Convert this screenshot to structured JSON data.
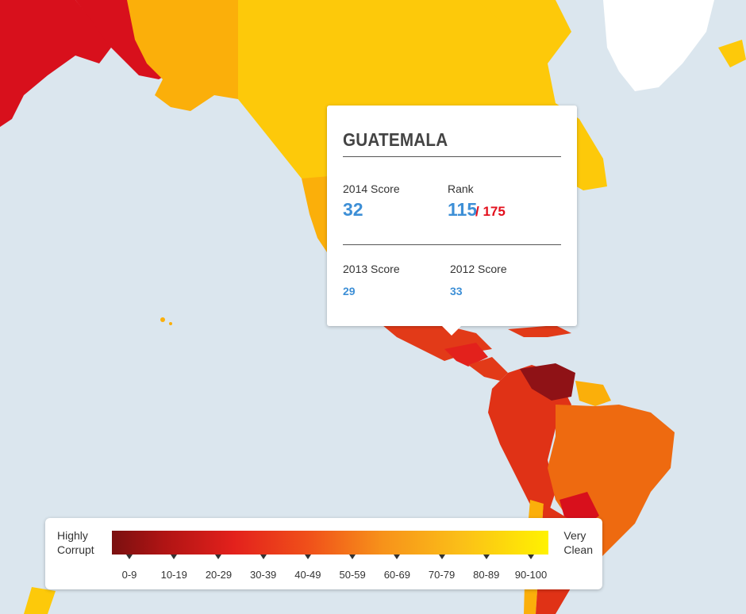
{
  "tooltip": {
    "country": "GUATEMALA",
    "score_2014_label": "2014 Score",
    "score_2014": "32",
    "rank_label": "Rank",
    "rank": "115",
    "rank_total": "/ 175",
    "score_2013_label": "2013 Score",
    "score_2013": "29",
    "score_2012_label": "2012 Score",
    "score_2012": "33"
  },
  "legend": {
    "left_line1": "Highly",
    "left_line2": "Corrupt",
    "right_line1": "Very",
    "right_line2": "Clean",
    "ranges": [
      "0-9",
      "10-19",
      "20-29",
      "30-39",
      "40-49",
      "50-59",
      "60-69",
      "70-79",
      "80-89",
      "90-100"
    ]
  },
  "colors": {
    "ocean": "#dbe6ee",
    "score_value": "#3d8fd6",
    "rank_total": "#e3101d",
    "alaska": "#d8101c",
    "canada": "#fdc90a",
    "usa": "#fbaf0a",
    "greenland": "#ffffff",
    "central_america": "#e23a18",
    "venezuela": "#8f1216",
    "brazil": "#ee6a10",
    "south_america_west": "#e03216",
    "chile": "#fbaf0a"
  }
}
